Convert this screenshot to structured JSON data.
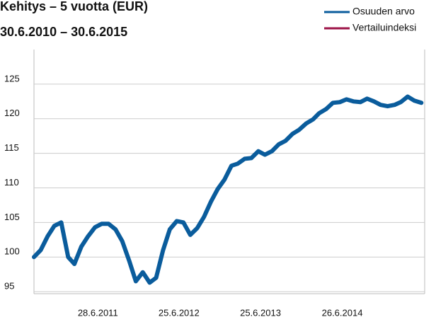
{
  "chart_data": {
    "type": "line",
    "title": "Kehitys – 5 vuotta (EUR)",
    "subtitle": "30.6.2010 – 30.6.2015",
    "x": [
      "2010-09-15",
      "2010-10-15",
      "2010-11-15",
      "2010-12-15",
      "2011-01-15",
      "2011-02-15",
      "2011-03-15",
      "2011-04-15",
      "2011-05-15",
      "2011-06-15",
      "2011-07-15",
      "2011-08-15",
      "2011-09-15",
      "2011-10-15",
      "2011-11-15",
      "2011-12-15",
      "2012-01-15",
      "2012-02-15",
      "2012-03-15",
      "2012-04-15",
      "2012-05-15",
      "2012-06-15",
      "2012-07-15",
      "2012-08-15",
      "2012-09-15",
      "2012-10-15",
      "2012-11-15",
      "2012-12-15",
      "2013-01-15",
      "2013-02-15",
      "2013-03-15",
      "2013-04-15",
      "2013-05-15",
      "2013-06-15",
      "2013-07-15",
      "2013-08-15",
      "2013-09-15",
      "2013-10-15",
      "2013-11-15",
      "2013-12-15",
      "2014-01-15",
      "2014-02-15",
      "2014-03-15",
      "2014-04-15",
      "2014-05-15",
      "2014-06-15",
      "2014-07-15",
      "2014-08-15",
      "2014-09-15",
      "2014-10-15",
      "2014-11-15",
      "2014-12-15",
      "2015-01-15",
      "2015-02-15",
      "2015-03-15",
      "2015-04-15",
      "2015-05-15",
      "2015-06-15"
    ],
    "series": [
      {
        "name": "Osuuden arvo",
        "color": "#0a5c9c",
        "values": [
          100,
          101,
          103,
          104.5,
          105,
          100,
          99,
          101.5,
          103,
          104.3,
          104.8,
          104.8,
          104,
          102.3,
          99.5,
          96.5,
          97.8,
          96.3,
          97,
          101,
          104,
          105.2,
          105,
          103.2,
          104.2,
          105.8,
          108,
          109.8,
          111.2,
          113.2,
          113.5,
          114.2,
          114.3,
          115.3,
          114.8,
          115.3,
          116.3,
          116.8,
          117.8,
          118.4,
          119.3,
          119.9,
          120.8,
          121.4,
          122.3,
          122.4,
          122.8,
          122.5,
          122.4,
          122.9,
          122.5,
          122,
          121.8,
          122,
          122.4,
          123.2,
          122.6,
          122.3
        ]
      },
      {
        "name": "Vertailuindeksi",
        "color": "#9c1347",
        "values": [
          null,
          null,
          null,
          null,
          null,
          null,
          null,
          null,
          null,
          null,
          null,
          null,
          null,
          null,
          null,
          null,
          null,
          null,
          null,
          null,
          null,
          null,
          null,
          null,
          null,
          null,
          null,
          null,
          null,
          null,
          null,
          null,
          null,
          null,
          null,
          null,
          null,
          null,
          null,
          null,
          null,
          null,
          null,
          null,
          null,
          null,
          null,
          null,
          null,
          null,
          null,
          null,
          null,
          null,
          null,
          null,
          null,
          null
        ]
      }
    ],
    "xlim": [
      "2010-09-15",
      "2015-06-30"
    ],
    "xticks": [
      {
        "value": "2011-06-28",
        "label": "28.6.2011"
      },
      {
        "value": "2012-06-25",
        "label": "25.6.2012"
      },
      {
        "value": "2013-06-25",
        "label": "25.6.2013"
      },
      {
        "value": "2014-06-26",
        "label": "26.6.2014"
      }
    ],
    "ylim": [
      94.7,
      130
    ],
    "yticks": [
      95,
      100,
      105,
      110,
      115,
      120,
      125
    ],
    "grid": true,
    "legend": "top-right"
  }
}
